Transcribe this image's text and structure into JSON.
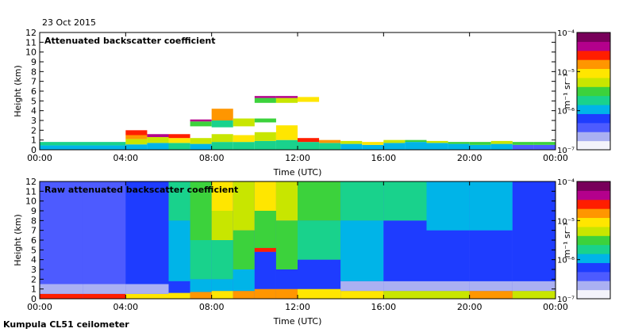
{
  "date_label": "23 Oct 2015",
  "footer_label": "Kumpula CL51 ceilometer",
  "colorscale": [
    "#f3f3fb",
    "#aab0f2",
    "#4d5bff",
    "#1e3cff",
    "#00b4e8",
    "#19d28c",
    "#3cd23c",
    "#c8e600",
    "#ffe600",
    "#ff9600",
    "#ff1e00",
    "#b4008c",
    "#78005a"
  ],
  "chart_data": [
    {
      "type": "heatmap",
      "title": "Attenuated backscatter coefficient",
      "xlabel": "Time (UTC)",
      "ylabel": "Height (km)",
      "x_ticks": [
        "00:00",
        "04:00",
        "08:00",
        "12:00",
        "16:00",
        "20:00",
        "00:00"
      ],
      "y_ticks": [
        "0",
        "1",
        "2",
        "3",
        "4",
        "5",
        "6",
        "7",
        "8",
        "9",
        "10",
        "11",
        "12"
      ],
      "xlim_hours": [
        0,
        24
      ],
      "ylim_km": [
        0,
        12
      ],
      "colorbar": {
        "label": "m⁻¹ sr⁻¹",
        "ticks": [
          "10⁻⁴",
          "10⁻⁵",
          "10⁻⁶",
          "10⁻⁷"
        ],
        "range_log10": [
          -7,
          -4
        ]
      },
      "cells": [
        [
          0,
          0,
          0.45,
          4
        ],
        [
          0,
          0.45,
          0.8,
          5
        ],
        [
          4,
          0,
          0.55,
          4
        ],
        [
          4,
          0.55,
          1.1,
          7
        ],
        [
          4,
          1.1,
          1.5,
          9
        ],
        [
          4,
          1.5,
          2.0,
          10
        ],
        [
          5,
          0,
          0.7,
          4
        ],
        [
          5,
          0.7,
          1.3,
          7
        ],
        [
          5,
          1.3,
          1.6,
          11
        ],
        [
          6,
          0,
          0.7,
          5
        ],
        [
          6,
          0.7,
          1.2,
          8
        ],
        [
          6,
          1.2,
          1.6,
          10
        ],
        [
          7,
          0,
          0.6,
          4
        ],
        [
          7,
          0.6,
          1.2,
          7
        ],
        [
          7,
          2.4,
          2.9,
          6
        ],
        [
          7,
          2.9,
          3.1,
          11
        ],
        [
          8,
          0,
          0.8,
          5
        ],
        [
          8,
          0.8,
          1.6,
          7
        ],
        [
          8,
          2.3,
          3.0,
          5
        ],
        [
          8,
          3.0,
          4.2,
          9
        ],
        [
          9,
          0,
          0.8,
          5
        ],
        [
          9,
          0.8,
          1.5,
          8
        ],
        [
          9,
          2.4,
          3.2,
          7
        ],
        [
          10,
          0,
          0.9,
          5
        ],
        [
          10,
          0.9,
          1.8,
          7
        ],
        [
          10,
          2.8,
          3.2,
          6
        ],
        [
          10,
          4.8,
          5.3,
          6
        ],
        [
          10,
          5.3,
          5.5,
          11
        ],
        [
          11,
          0,
          1.0,
          5
        ],
        [
          11,
          1.0,
          2.5,
          8
        ],
        [
          11,
          4.8,
          5.3,
          7
        ],
        [
          11,
          5.3,
          5.5,
          11
        ],
        [
          12,
          0,
          0.8,
          5
        ],
        [
          12,
          0.8,
          1.2,
          10
        ],
        [
          12,
          4.9,
          5.4,
          8
        ],
        [
          13,
          0,
          0.7,
          5
        ],
        [
          13,
          0.7,
          1.0,
          9
        ],
        [
          14,
          0,
          0.6,
          4
        ],
        [
          14,
          0.6,
          0.9,
          7
        ],
        [
          15,
          0,
          0.5,
          4
        ],
        [
          15,
          0.5,
          0.8,
          8
        ],
        [
          16,
          0,
          0.7,
          4
        ],
        [
          16,
          0.7,
          1.0,
          7
        ],
        [
          17,
          0,
          0.8,
          4
        ],
        [
          17,
          0.8,
          1.0,
          6
        ],
        [
          18,
          0,
          0.7,
          4
        ],
        [
          18,
          0.7,
          0.9,
          7
        ],
        [
          19,
          0,
          0.6,
          4
        ],
        [
          19,
          0.6,
          0.8,
          6
        ],
        [
          20,
          0,
          0.5,
          4
        ],
        [
          20,
          0.5,
          0.8,
          6
        ],
        [
          21,
          0,
          0.6,
          4
        ],
        [
          21,
          0.6,
          0.9,
          7
        ],
        [
          22,
          0,
          0.5,
          2
        ],
        [
          22,
          0.5,
          0.8,
          6
        ],
        [
          23,
          0,
          0.5,
          2
        ],
        [
          23,
          0.5,
          0.8,
          6
        ]
      ]
    },
    {
      "type": "heatmap",
      "title": "Raw attenuated backscatter coefficient",
      "xlabel": "Time (UTC)",
      "ylabel": "Height (km)",
      "x_ticks": [
        "00:00",
        "04:00",
        "08:00",
        "12:00",
        "16:00",
        "20:00",
        "00:00"
      ],
      "y_ticks": [
        "0",
        "1",
        "2",
        "3",
        "4",
        "5",
        "6",
        "7",
        "8",
        "9",
        "10",
        "11",
        "12"
      ],
      "xlim_hours": [
        0,
        24
      ],
      "ylim_km": [
        0,
        12
      ],
      "colorbar": {
        "label": "m⁻¹ sr⁻¹",
        "ticks": [
          "10⁻⁴",
          "10⁻⁵",
          "10⁻⁶",
          "10⁻⁷"
        ],
        "range_log10": [
          -7,
          -4
        ]
      },
      "cells": [
        [
          0,
          0,
          0.5,
          10
        ],
        [
          0,
          0.5,
          1.5,
          1
        ],
        [
          0,
          1.5,
          12,
          2
        ],
        [
          2,
          0,
          0.5,
          10
        ],
        [
          2,
          0.5,
          1.5,
          1
        ],
        [
          2,
          1.5,
          12,
          2
        ],
        [
          4,
          0,
          0.5,
          8
        ],
        [
          4,
          0.5,
          1.5,
          1
        ],
        [
          4,
          1.5,
          12,
          3
        ],
        [
          6,
          0,
          0.6,
          8
        ],
        [
          6,
          0.6,
          1.8,
          3
        ],
        [
          6,
          1.8,
          8,
          4
        ],
        [
          6,
          8,
          12,
          5
        ],
        [
          7,
          0,
          0.7,
          9
        ],
        [
          7,
          0.7,
          2,
          4
        ],
        [
          7,
          2,
          6,
          5
        ],
        [
          7,
          6,
          12,
          6
        ],
        [
          8,
          0,
          0.8,
          8
        ],
        [
          8,
          0.8,
          2,
          4
        ],
        [
          8,
          2,
          6,
          5
        ],
        [
          8,
          6,
          9,
          7
        ],
        [
          8,
          9,
          12,
          8
        ],
        [
          9,
          0,
          0.8,
          9
        ],
        [
          9,
          0.8,
          3,
          4
        ],
        [
          9,
          3,
          7,
          6
        ],
        [
          9,
          7,
          12,
          7
        ],
        [
          10,
          0,
          1,
          9
        ],
        [
          10,
          1,
          4.8,
          3
        ],
        [
          10,
          4.8,
          5.2,
          10
        ],
        [
          10,
          5.2,
          9,
          6
        ],
        [
          10,
          9,
          12,
          8
        ],
        [
          11,
          0,
          1,
          9
        ],
        [
          11,
          1,
          3,
          3
        ],
        [
          11,
          3,
          8,
          6
        ],
        [
          11,
          8,
          12,
          7
        ],
        [
          12,
          0,
          1,
          8
        ],
        [
          12,
          1,
          4,
          3
        ],
        [
          12,
          4,
          8,
          5
        ],
        [
          12,
          8,
          12,
          6
        ],
        [
          14,
          0,
          0.8,
          8
        ],
        [
          14,
          0.8,
          1.8,
          1
        ],
        [
          14,
          1.8,
          8,
          4
        ],
        [
          14,
          8,
          12,
          5
        ],
        [
          16,
          0,
          0.8,
          7
        ],
        [
          16,
          0.8,
          1.8,
          1
        ],
        [
          16,
          1.8,
          8,
          3
        ],
        [
          16,
          8,
          12,
          5
        ],
        [
          18,
          0,
          0.8,
          7
        ],
        [
          18,
          0.8,
          1.8,
          1
        ],
        [
          18,
          1.8,
          7,
          3
        ],
        [
          18,
          7,
          12,
          4
        ],
        [
          20,
          0,
          0.8,
          9
        ],
        [
          20,
          0.8,
          1.8,
          1
        ],
        [
          20,
          1.8,
          7,
          3
        ],
        [
          20,
          7,
          12,
          4
        ],
        [
          22,
          0,
          0.8,
          7
        ],
        [
          22,
          0.8,
          1.8,
          1
        ],
        [
          22,
          1.8,
          12,
          3
        ]
      ]
    }
  ]
}
